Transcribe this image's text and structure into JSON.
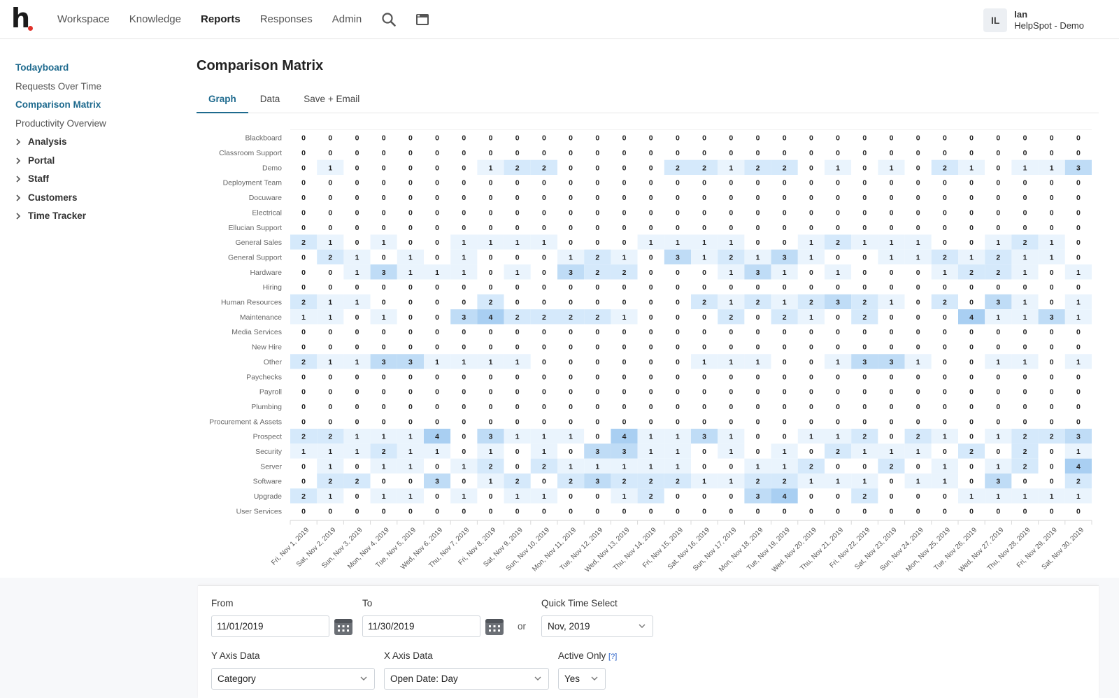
{
  "nav": {
    "items": [
      "Workspace",
      "Knowledge",
      "Reports",
      "Responses",
      "Admin"
    ],
    "active": "Reports"
  },
  "user": {
    "initials": "IL",
    "name": "Ian",
    "org": "HelpSpot - Demo"
  },
  "sidebar": {
    "items": [
      {
        "label": "Todayboard",
        "type": "link"
      },
      {
        "label": "Requests Over Time",
        "type": "item"
      },
      {
        "label": "Comparison Matrix",
        "type": "link"
      },
      {
        "label": "Productivity Overview",
        "type": "item"
      },
      {
        "label": "Analysis",
        "type": "group"
      },
      {
        "label": "Portal",
        "type": "group"
      },
      {
        "label": "Staff",
        "type": "group"
      },
      {
        "label": "Customers",
        "type": "group"
      },
      {
        "label": "Time Tracker",
        "type": "group"
      }
    ]
  },
  "page": {
    "title": "Comparison Matrix",
    "tabs": [
      "Graph",
      "Data",
      "Save + Email"
    ],
    "active_tab": "Graph"
  },
  "chart_data": {
    "type": "heatmap",
    "rows": [
      "Blackboard",
      "Classroom Support",
      "Demo",
      "Deployment Team",
      "Docuware",
      "Electrical",
      "Ellucian Support",
      "General Sales",
      "General Support",
      "Hardware",
      "Hiring",
      "Human Resources",
      "Maintenance",
      "Media Services",
      "New Hire",
      "Other",
      "Paychecks",
      "Payroll",
      "Plumbing",
      "Procurement & Assets",
      "Prospect",
      "Security",
      "Server",
      "Software",
      "Upgrade",
      "User Services"
    ],
    "columns": [
      "Fri, Nov 1, 2019",
      "Sat, Nov 2, 2019",
      "Sun, Nov 3, 2019",
      "Mon, Nov 4, 2019",
      "Tue, Nov 5, 2019",
      "Wed, Nov 6, 2019",
      "Thu, Nov 7, 2019",
      "Fri, Nov 8, 2019",
      "Sat, Nov 9, 2019",
      "Sun, Nov 10, 2019",
      "Mon, Nov 11, 2019",
      "Tue, Nov 12, 2019",
      "Wed, Nov 13, 2019",
      "Thu, Nov 14, 2019",
      "Fri, Nov 15, 2019",
      "Sat, Nov 16, 2019",
      "Sun, Nov 17, 2019",
      "Mon, Nov 18, 2019",
      "Tue, Nov 19, 2019",
      "Wed, Nov 20, 2019",
      "Thu, Nov 21, 2019",
      "Fri, Nov 22, 2019",
      "Sat, Nov 23, 2019",
      "Sun, Nov 24, 2019",
      "Mon, Nov 25, 2019",
      "Tue, Nov 26, 2019",
      "Wed, Nov 27, 2019",
      "Thu, Nov 28, 2019",
      "Fri, Nov 29, 2019",
      "Sat, Nov 30, 2019"
    ],
    "values": [
      [
        0,
        0,
        0,
        0,
        0,
        0,
        0,
        0,
        0,
        0,
        0,
        0,
        0,
        0,
        0,
        0,
        0,
        0,
        0,
        0,
        0,
        0,
        0,
        0,
        0,
        0,
        0,
        0,
        0,
        0
      ],
      [
        0,
        0,
        0,
        0,
        0,
        0,
        0,
        0,
        0,
        0,
        0,
        0,
        0,
        0,
        0,
        0,
        0,
        0,
        0,
        0,
        0,
        0,
        0,
        0,
        0,
        0,
        0,
        0,
        0,
        0
      ],
      [
        0,
        1,
        0,
        0,
        0,
        0,
        0,
        1,
        2,
        2,
        0,
        0,
        0,
        0,
        2,
        2,
        1,
        2,
        2,
        0,
        1,
        0,
        1,
        0,
        2,
        1,
        0,
        1,
        1,
        3
      ],
      [
        0,
        0,
        0,
        0,
        0,
        0,
        0,
        0,
        0,
        0,
        0,
        0,
        0,
        0,
        0,
        0,
        0,
        0,
        0,
        0,
        0,
        0,
        0,
        0,
        0,
        0,
        0,
        0,
        0,
        0
      ],
      [
        0,
        0,
        0,
        0,
        0,
        0,
        0,
        0,
        0,
        0,
        0,
        0,
        0,
        0,
        0,
        0,
        0,
        0,
        0,
        0,
        0,
        0,
        0,
        0,
        0,
        0,
        0,
        0,
        0,
        0
      ],
      [
        0,
        0,
        0,
        0,
        0,
        0,
        0,
        0,
        0,
        0,
        0,
        0,
        0,
        0,
        0,
        0,
        0,
        0,
        0,
        0,
        0,
        0,
        0,
        0,
        0,
        0,
        0,
        0,
        0,
        0
      ],
      [
        0,
        0,
        0,
        0,
        0,
        0,
        0,
        0,
        0,
        0,
        0,
        0,
        0,
        0,
        0,
        0,
        0,
        0,
        0,
        0,
        0,
        0,
        0,
        0,
        0,
        0,
        0,
        0,
        0,
        0
      ],
      [
        2,
        1,
        0,
        1,
        0,
        0,
        1,
        1,
        1,
        1,
        0,
        0,
        0,
        1,
        1,
        1,
        1,
        0,
        0,
        1,
        2,
        1,
        1,
        1,
        0,
        0,
        1,
        2,
        1,
        0
      ],
      [
        0,
        2,
        1,
        0,
        1,
        0,
        1,
        0,
        0,
        0,
        1,
        2,
        1,
        0,
        3,
        1,
        2,
        1,
        3,
        1,
        0,
        0,
        1,
        1,
        2,
        1,
        2,
        1,
        1,
        0
      ],
      [
        0,
        0,
        1,
        3,
        1,
        1,
        1,
        0,
        1,
        0,
        3,
        2,
        2,
        0,
        0,
        0,
        1,
        3,
        1,
        0,
        1,
        0,
        0,
        0,
        1,
        2,
        2,
        1,
        0,
        1
      ],
      [
        0,
        0,
        0,
        0,
        0,
        0,
        0,
        0,
        0,
        0,
        0,
        0,
        0,
        0,
        0,
        0,
        0,
        0,
        0,
        0,
        0,
        0,
        0,
        0,
        0,
        0,
        0,
        0,
        0,
        0
      ],
      [
        2,
        1,
        1,
        0,
        0,
        0,
        0,
        2,
        0,
        0,
        0,
        0,
        0,
        0,
        0,
        2,
        1,
        2,
        1,
        2,
        3,
        2,
        1,
        0,
        2,
        0,
        3,
        1,
        0,
        1
      ],
      [
        1,
        1,
        0,
        1,
        0,
        0,
        3,
        4,
        2,
        2,
        2,
        2,
        1,
        0,
        0,
        0,
        2,
        0,
        2,
        1,
        0,
        2,
        0,
        0,
        0,
        4,
        1,
        1,
        3,
        1
      ],
      [
        0,
        0,
        0,
        0,
        0,
        0,
        0,
        0,
        0,
        0,
        0,
        0,
        0,
        0,
        0,
        0,
        0,
        0,
        0,
        0,
        0,
        0,
        0,
        0,
        0,
        0,
        0,
        0,
        0,
        0
      ],
      [
        0,
        0,
        0,
        0,
        0,
        0,
        0,
        0,
        0,
        0,
        0,
        0,
        0,
        0,
        0,
        0,
        0,
        0,
        0,
        0,
        0,
        0,
        0,
        0,
        0,
        0,
        0,
        0,
        0,
        0
      ],
      [
        2,
        1,
        1,
        3,
        3,
        1,
        1,
        1,
        1,
        0,
        0,
        0,
        0,
        0,
        0,
        1,
        1,
        1,
        0,
        0,
        1,
        3,
        3,
        1,
        0,
        0,
        1,
        1,
        0,
        1
      ],
      [
        0,
        0,
        0,
        0,
        0,
        0,
        0,
        0,
        0,
        0,
        0,
        0,
        0,
        0,
        0,
        0,
        0,
        0,
        0,
        0,
        0,
        0,
        0,
        0,
        0,
        0,
        0,
        0,
        0,
        0
      ],
      [
        0,
        0,
        0,
        0,
        0,
        0,
        0,
        0,
        0,
        0,
        0,
        0,
        0,
        0,
        0,
        0,
        0,
        0,
        0,
        0,
        0,
        0,
        0,
        0,
        0,
        0,
        0,
        0,
        0,
        0
      ],
      [
        0,
        0,
        0,
        0,
        0,
        0,
        0,
        0,
        0,
        0,
        0,
        0,
        0,
        0,
        0,
        0,
        0,
        0,
        0,
        0,
        0,
        0,
        0,
        0,
        0,
        0,
        0,
        0,
        0,
        0
      ],
      [
        0,
        0,
        0,
        0,
        0,
        0,
        0,
        0,
        0,
        0,
        0,
        0,
        0,
        0,
        0,
        0,
        0,
        0,
        0,
        0,
        0,
        0,
        0,
        0,
        0,
        0,
        0,
        0,
        0,
        0
      ],
      [
        2,
        2,
        1,
        1,
        1,
        4,
        0,
        3,
        1,
        1,
        1,
        0,
        4,
        1,
        1,
        3,
        1,
        0,
        0,
        1,
        1,
        2,
        0,
        2,
        1,
        0,
        1,
        2,
        2,
        3
      ],
      [
        1,
        1,
        1,
        2,
        1,
        1,
        0,
        1,
        0,
        1,
        0,
        3,
        3,
        1,
        1,
        0,
        1,
        0,
        1,
        0,
        2,
        1,
        1,
        1,
        0,
        2,
        0,
        2,
        0,
        1
      ],
      [
        0,
        1,
        0,
        1,
        1,
        0,
        1,
        2,
        0,
        2,
        1,
        1,
        1,
        1,
        1,
        0,
        0,
        1,
        1,
        2,
        0,
        0,
        2,
        0,
        1,
        0,
        1,
        2,
        0,
        4
      ],
      [
        0,
        2,
        2,
        0,
        0,
        3,
        0,
        1,
        2,
        0,
        2,
        3,
        2,
        2,
        2,
        1,
        1,
        2,
        2,
        1,
        1,
        1,
        0,
        1,
        1,
        0,
        3,
        0,
        0,
        2
      ],
      [
        2,
        1,
        0,
        1,
        1,
        0,
        1,
        0,
        1,
        1,
        0,
        0,
        1,
        2,
        0,
        0,
        0,
        3,
        4,
        0,
        0,
        2,
        0,
        0,
        0,
        1,
        1,
        1,
        1,
        1
      ],
      [
        0,
        0,
        0,
        0,
        0,
        0,
        0,
        0,
        0,
        0,
        0,
        0,
        0,
        0,
        0,
        0,
        0,
        0,
        0,
        0,
        0,
        0,
        0,
        0,
        0,
        0,
        0,
        0,
        0,
        0
      ]
    ],
    "colors": [
      "#ffffff",
      "#eaf4fd",
      "#d5e9fb",
      "#bfdcf6",
      "#a9cff2"
    ]
  },
  "filters": {
    "from_label": "From",
    "from_value": "11/01/2019",
    "to_label": "To",
    "to_value": "11/30/2019",
    "or_label": "or",
    "quick_label": "Quick Time Select",
    "quick_value": "Nov, 2019",
    "yaxis_label": "Y Axis Data",
    "yaxis_value": "Category",
    "xaxis_label": "X Axis Data",
    "xaxis_value": "Open Date: Day",
    "active_label": "Active Only",
    "active_help": "[?]",
    "active_value": "Yes"
  },
  "icons": {
    "search": "search-icon",
    "calendar_app": "calendar-icon",
    "date_picker": "date-picker-icon",
    "chevron": "chevron-right-icon",
    "caret": "chevron-down-icon"
  }
}
